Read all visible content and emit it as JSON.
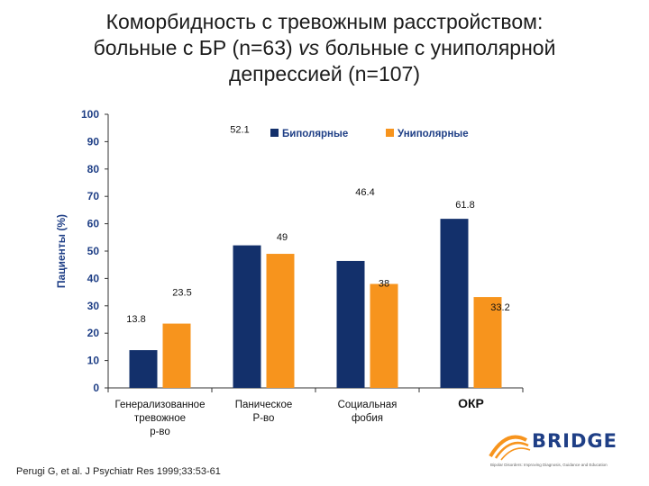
{
  "title": {
    "line1": "Коморбидность с тревожным расстройством:",
    "line2_pre": "больные с БР (n=63) ",
    "line2_em": "vs",
    "line2_post": " больные с униполярной",
    "line3": "депрессией (n=107)"
  },
  "chart_data": {
    "type": "bar",
    "title": "",
    "xlabel": "",
    "ylabel": "Пациенты (%)",
    "ylim": [
      0,
      100
    ],
    "yticks": [
      "0",
      "10",
      "20",
      "30",
      "40",
      "50",
      "60",
      "70",
      "80",
      "90",
      "100"
    ],
    "categories": [
      [
        "Генерализованное",
        "тревожное",
        "р-во"
      ],
      [
        "Паническое",
        "Р-во"
      ],
      [
        "Социальная",
        "фобия"
      ],
      [
        "ОКР"
      ]
    ],
    "series": [
      {
        "name": "Биполярные",
        "color": "#13306b",
        "values": [
          13.8,
          52.1,
          46.4,
          61.8
        ]
      },
      {
        "name": "Униполярные",
        "color": "#f7941d",
        "values": [
          23.5,
          49,
          38,
          33.2
        ]
      }
    ],
    "data_labels": [
      [
        "13.8",
        "52.1",
        "46.4",
        "61.8"
      ],
      [
        "23.5",
        "49",
        "38",
        "33.2"
      ]
    ],
    "grid": false,
    "legend": "top-right"
  },
  "citation": "Perugi G, et al. J Psychiatr Res 1999;33:53-61",
  "logo": {
    "name": "BRIDGE",
    "tagline": "Bipolar Disorders: Improving Diagnosis, Guidance and Education"
  }
}
